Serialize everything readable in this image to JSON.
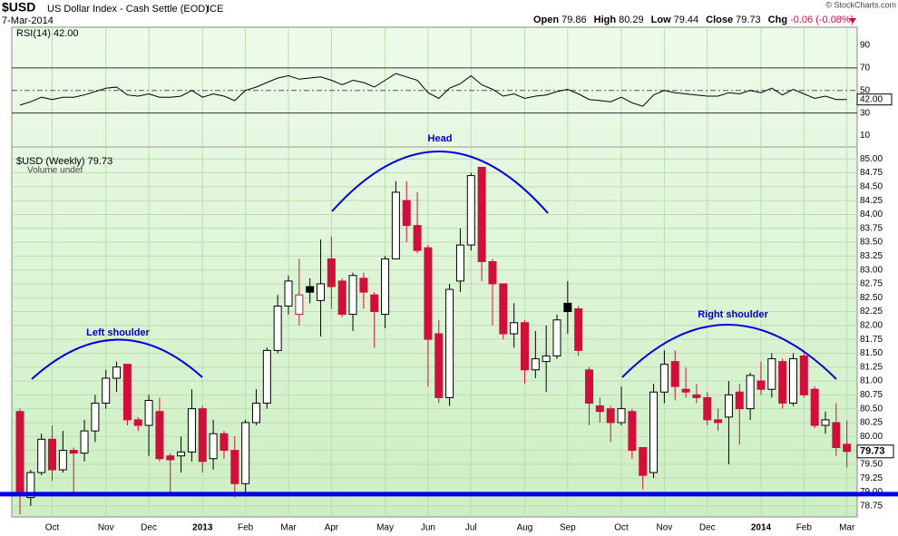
{
  "header": {
    "symbol": "$USD",
    "name": "US Dollar Index - Cash Settle (EOD)",
    "exchange": "ICE",
    "date": "7-Mar-2014",
    "copyright": "© StockCharts.com",
    "quote": [
      {
        "label": "Open",
        "value": "79.86"
      },
      {
        "label": "High",
        "value": "80.29"
      },
      {
        "label": "Low",
        "value": "79.44"
      },
      {
        "label": "Close",
        "value": "79.73"
      },
      {
        "label": "Chg",
        "value": "-0.06 (-0.08%)"
      }
    ]
  },
  "chart_data": [
    {
      "type": "candlestick",
      "title": "$USD (Weekly)",
      "last_label": "79.73",
      "subtitle": "Volume undef",
      "up_color": "#000000",
      "down_color": "#d0103a",
      "neckline": 78.96,
      "neckline_color": "#0000e0",
      "annotations": [
        "Left shoulder",
        "Head",
        "Right shoulder"
      ],
      "categories": [
        null,
        null,
        null,
        "Oct",
        null,
        null,
        null,
        null,
        "Nov",
        null,
        null,
        null,
        "Dec",
        null,
        null,
        null,
        null,
        "2013",
        null,
        null,
        null,
        "Feb",
        null,
        null,
        null,
        "Mar",
        null,
        null,
        null,
        "Apr",
        null,
        null,
        null,
        null,
        "May",
        null,
        null,
        null,
        "Jun",
        null,
        null,
        null,
        "Jul",
        null,
        null,
        null,
        null,
        "Aug",
        null,
        null,
        null,
        "Sep",
        null,
        null,
        null,
        null,
        "Oct",
        null,
        null,
        null,
        "Nov",
        null,
        null,
        null,
        "Dec",
        null,
        null,
        null,
        null,
        "2014",
        null,
        null,
        null,
        "Feb",
        null,
        null,
        null,
        "Mar"
      ],
      "open": [
        80.45,
        78.9,
        79.35,
        79.95,
        79.4,
        79.75,
        79.7,
        80.1,
        80.6,
        81.05,
        81.3,
        80.3,
        80.2,
        80.45,
        79.65,
        79.65,
        79.72,
        80.5,
        79.6,
        80.05,
        79.75,
        79.15,
        80.25,
        80.6,
        81.55,
        82.35,
        82.2,
        82.7,
        82.45,
        83.2,
        82.8,
        82.2,
        82.85,
        82.55,
        82.2,
        83.2,
        84.25,
        83.8,
        83.4,
        81.85,
        80.7,
        82.8,
        83.45,
        84.85,
        83.15,
        82.75,
        81.85,
        82.05,
        81.2,
        81.35,
        81.45,
        82.4,
        82.3,
        81.2,
        80.55,
        80.5,
        80.25,
        80.45,
        79.8,
        79.35,
        80.8,
        81.35,
        80.85,
        80.75,
        80.7,
        80.3,
        80.35,
        80.8,
        80.5,
        81.0,
        80.85,
        81.35,
        80.6,
        81.45,
        80.85,
        80.2,
        80.25,
        79.86
      ],
      "high": [
        80.5,
        79.4,
        80.05,
        80.2,
        80.1,
        79.8,
        80.3,
        80.75,
        81.2,
        81.35,
        81.3,
        80.35,
        80.75,
        80.7,
        79.7,
        80.0,
        80.85,
        80.55,
        80.3,
        80.1,
        80.0,
        80.3,
        80.85,
        81.6,
        82.55,
        82.9,
        83.2,
        82.85,
        83.55,
        83.6,
        82.85,
        82.95,
        82.95,
        82.6,
        83.25,
        84.6,
        84.6,
        84.4,
        83.45,
        82.1,
        82.75,
        83.75,
        84.75,
        84.85,
        83.2,
        82.75,
        82.4,
        82.1,
        81.9,
        82.0,
        82.2,
        82.8,
        82.35,
        81.25,
        80.7,
        80.55,
        80.9,
        80.5,
        79.8,
        80.95,
        81.55,
        81.55,
        81.25,
        80.95,
        80.8,
        80.5,
        81.0,
        80.95,
        81.15,
        81.35,
        81.5,
        81.4,
        81.5,
        81.5,
        80.9,
        80.45,
        80.6,
        80.29
      ],
      "low": [
        78.6,
        78.75,
        79.3,
        79.2,
        79.35,
        79.0,
        79.55,
        79.9,
        80.5,
        80.8,
        80.2,
        80.1,
        79.65,
        79.55,
        78.95,
        79.35,
        79.55,
        79.35,
        79.4,
        79.6,
        78.9,
        78.95,
        80.2,
        80.5,
        81.5,
        82.2,
        82.0,
        82.4,
        81.8,
        82.3,
        82.15,
        81.9,
        82.3,
        81.6,
        81.95,
        83.2,
        83.5,
        83.3,
        80.9,
        80.6,
        80.55,
        82.6,
        83.35,
        82.8,
        82.0,
        81.75,
        81.6,
        80.95,
        81.05,
        80.8,
        81.4,
        81.85,
        81.45,
        80.2,
        80.25,
        79.9,
        80.2,
        79.6,
        79.05,
        79.25,
        80.6,
        80.65,
        80.7,
        80.6,
        80.2,
        80.1,
        79.5,
        79.85,
        80.3,
        80.75,
        80.7,
        80.5,
        80.55,
        80.7,
        80.15,
        80.05,
        79.65,
        79.44
      ],
      "close": [
        78.95,
        79.35,
        79.95,
        79.4,
        79.75,
        79.7,
        80.1,
        80.6,
        81.05,
        81.25,
        80.3,
        80.2,
        80.65,
        79.6,
        79.58,
        79.72,
        80.5,
        79.55,
        80.05,
        79.75,
        79.15,
        80.25,
        80.6,
        81.55,
        82.35,
        82.8,
        82.55,
        82.6,
        82.75,
        82.7,
        82.2,
        82.9,
        82.6,
        82.25,
        83.2,
        84.4,
        83.8,
        83.35,
        81.75,
        80.7,
        82.65,
        83.45,
        84.7,
        83.15,
        82.75,
        81.85,
        82.05,
        81.2,
        81.4,
        81.45,
        82.1,
        82.25,
        81.55,
        80.6,
        80.45,
        80.25,
        80.5,
        79.75,
        79.3,
        80.8,
        81.3,
        80.9,
        80.8,
        80.7,
        80.3,
        80.25,
        80.75,
        80.5,
        81.1,
        80.85,
        81.4,
        80.6,
        81.4,
        80.75,
        80.2,
        80.3,
        79.8,
        79.73
      ],
      "ylim": [
        78.55,
        85.2
      ],
      "yticks": [
        {
          "value": 78.75,
          "label": "78.75"
        },
        {
          "value": 79,
          "label": "79.00"
        },
        {
          "value": 79.25,
          "label": "79.25"
        },
        {
          "value": 79.5,
          "label": "79.50"
        },
        {
          "value": 79.75,
          "label": "79.75"
        },
        {
          "value": 80,
          "label": "80.00"
        },
        {
          "value": 80.25,
          "label": "80.25"
        },
        {
          "value": 80.5,
          "label": "80.50"
        },
        {
          "value": 80.75,
          "label": "80.75"
        },
        {
          "value": 81,
          "label": "81.00"
        },
        {
          "value": 81.25,
          "label": "81.25"
        },
        {
          "value": 81.5,
          "label": "81.50"
        },
        {
          "value": 81.75,
          "label": "81.75"
        },
        {
          "value": 82,
          "label": "82.00"
        },
        {
          "value": 82.25,
          "label": "82.25"
        },
        {
          "value": 82.5,
          "label": "82.50"
        },
        {
          "value": 82.75,
          "label": "82.75"
        },
        {
          "value": 83,
          "label": "83.00"
        },
        {
          "value": 83.25,
          "label": "83.25"
        },
        {
          "value": 83.5,
          "label": "83.50"
        },
        {
          "value": 83.75,
          "label": "83.75"
        },
        {
          "value": 84,
          "label": "84.00"
        },
        {
          "value": 84.25,
          "label": "84.25"
        },
        {
          "value": 84.5,
          "label": "84.50"
        },
        {
          "value": 84.75,
          "label": "84.75"
        },
        {
          "value": 85,
          "label": "85.00"
        }
      ],
      "grid": true
    },
    {
      "type": "line",
      "title": "RSI(14)",
      "last_label": "42.00",
      "color": "#000000",
      "values": [
        37,
        40,
        44,
        42,
        44,
        44,
        46,
        49,
        52,
        53,
        46,
        45,
        47,
        44,
        44,
        45,
        50,
        44,
        47,
        45,
        41,
        50,
        53,
        57,
        61,
        63,
        60,
        61,
        62,
        59,
        55,
        59,
        57,
        53,
        59,
        65,
        62,
        59,
        48,
        43,
        52,
        56,
        63,
        55,
        51,
        45,
        47,
        43,
        45,
        46,
        49,
        51,
        47,
        42,
        41,
        40,
        44,
        39,
        36,
        46,
        50,
        48,
        47,
        46,
        45,
        45,
        48,
        47,
        50,
        48,
        52,
        46,
        51,
        47,
        43,
        45,
        42,
        42
      ],
      "ylim": [
        0,
        106
      ],
      "yticks": [
        10,
        30,
        50,
        70,
        90
      ],
      "levels": [
        30,
        50,
        70
      ]
    }
  ]
}
